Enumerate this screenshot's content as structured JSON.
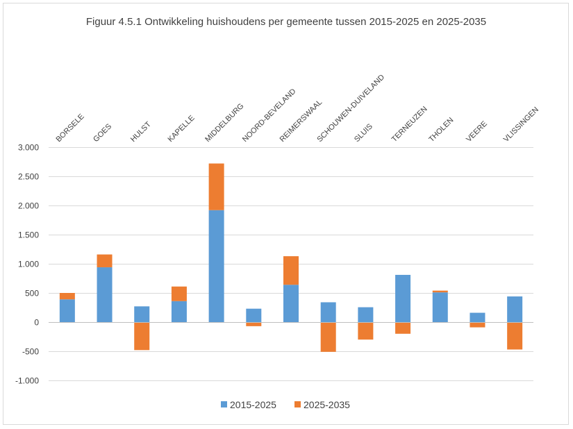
{
  "chart_data": {
    "type": "bar",
    "stacked": true,
    "title": "Figuur 4.5.1 Ontwikkeling huishoudens per gemeente tussen 2015-2025 en 2025-2035",
    "categories": [
      "BORSELE",
      "GOES",
      "HULST",
      "KAPELLE",
      "MIDDELBURG",
      "NOORD-BEVELAND",
      "REIMERSWAAL",
      "SCHOUWEN-DUIVELAND",
      "SLUIS",
      "TERNEUZEN",
      "THOLEN",
      "VEERE",
      "VLISSINGEN"
    ],
    "series": [
      {
        "name": "2015-2025",
        "color": "#5b9bd5",
        "values": [
          390,
          940,
          270,
          360,
          1920,
          230,
          640,
          340,
          255,
          810,
          510,
          160,
          440
        ]
      },
      {
        "name": "2025-2035",
        "color": "#ed7d31",
        "values": [
          110,
          220,
          -480,
          250,
          800,
          -70,
          490,
          -510,
          -300,
          -200,
          30,
          -90,
          -470
        ]
      }
    ],
    "ylim": [
      -1000,
      3000
    ],
    "yticks": [
      -1000,
      -500,
      0,
      500,
      1000,
      1500,
      2000,
      2500,
      3000
    ],
    "ytick_labels": [
      "-1.000",
      "-500",
      "0",
      "500",
      "1.000",
      "1.500",
      "2.000",
      "2.500",
      "3.000"
    ],
    "xlabel": "",
    "ylabel": "",
    "grid": true,
    "legend_position": "bottom"
  }
}
